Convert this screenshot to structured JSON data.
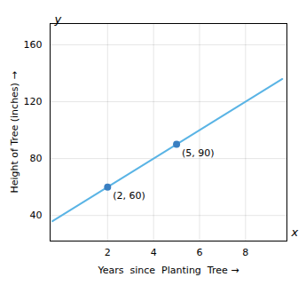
{
  "chart_data": {
    "type": "line",
    "xlabel": "Years  since  Planting  Tree",
    "ylabel": "Height of Tree (inches)",
    "xlim": [
      -0.5,
      9.8
    ],
    "ylim": [
      22,
      175
    ],
    "xticks": [
      2,
      4,
      6,
      8
    ],
    "yticks": [
      40,
      80,
      120,
      160
    ],
    "grid": true,
    "annotations": [
      "x",
      "y"
    ],
    "series": [
      {
        "type": "line",
        "color": "#5ab4e5",
        "x": [
          -0.4,
          9.6
        ],
        "values": [
          36,
          136
        ]
      },
      {
        "type": "scatter",
        "color": "#3a7fc1",
        "marker": "circle",
        "x": [
          2,
          5
        ],
        "values": [
          60,
          90
        ],
        "value_labels": [
          "(2, 60)",
          "(5, 90)"
        ],
        "data_labels": true
      }
    ]
  }
}
